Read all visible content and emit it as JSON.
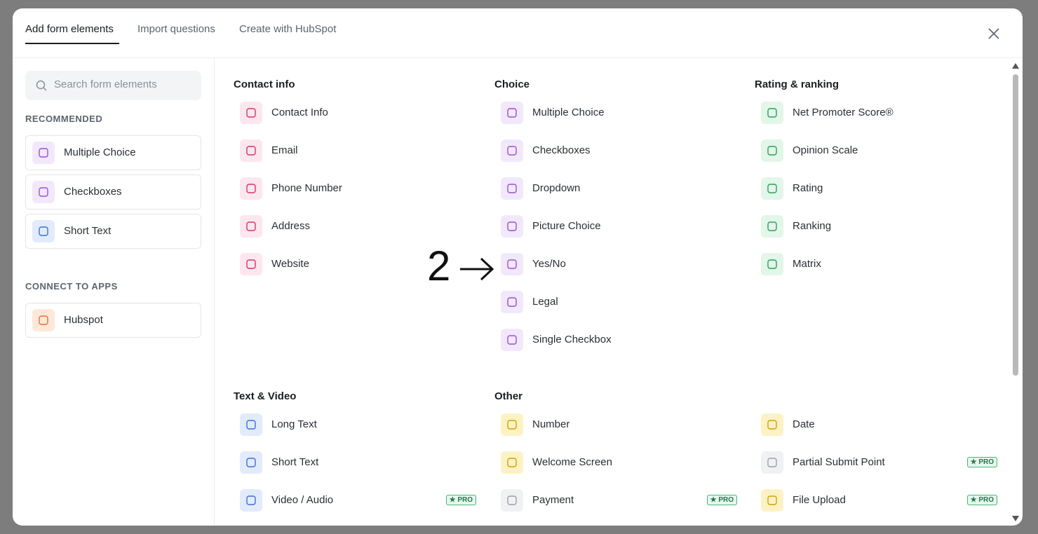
{
  "tabs": [
    "Add form elements",
    "Import questions",
    "Create with HubSpot"
  ],
  "search_placeholder": "Search form elements",
  "sidebar": [
    {
      "title": "RECOMMENDED",
      "items": [
        "Multiple Choice",
        "Checkboxes",
        "Short Text"
      ]
    },
    {
      "title": "CONNECT TO APPS",
      "items": [
        "Hubspot"
      ]
    }
  ],
  "groups": [
    {
      "title": "Contact info",
      "items": [
        {
          "label": "Contact Info"
        },
        {
          "label": "Email"
        },
        {
          "label": "Phone Number"
        },
        {
          "label": "Address"
        },
        {
          "label": "Website"
        }
      ]
    },
    {
      "title": "Choice",
      "items": [
        {
          "label": "Multiple Choice"
        },
        {
          "label": "Checkboxes"
        },
        {
          "label": "Dropdown"
        },
        {
          "label": "Picture Choice"
        },
        {
          "label": "Yes/No"
        },
        {
          "label": "Legal"
        },
        {
          "label": "Single Checkbox"
        }
      ]
    },
    {
      "title": "Rating & ranking",
      "items": [
        {
          "label": "Net Promoter Score®"
        },
        {
          "label": "Opinion Scale"
        },
        {
          "label": "Rating"
        },
        {
          "label": "Ranking"
        },
        {
          "label": "Matrix"
        }
      ]
    },
    {
      "title": "Text & Video",
      "items": [
        {
          "label": "Long Text"
        },
        {
          "label": "Short Text"
        },
        {
          "label": "Video / Audio",
          "badge": "★ PRO"
        }
      ]
    },
    {
      "title": "Other",
      "items": [
        {
          "label": "Number"
        },
        {
          "label": "Welcome Screen"
        },
        {
          "label": "Payment",
          "badge": "★ PRO"
        },
        {
          "label": "Date"
        },
        {
          "label": "Partial Submit Point",
          "badge": "★ PRO"
        },
        {
          "label": "File Upload",
          "badge": "★ PRO"
        }
      ]
    }
  ],
  "annotation": "2"
}
